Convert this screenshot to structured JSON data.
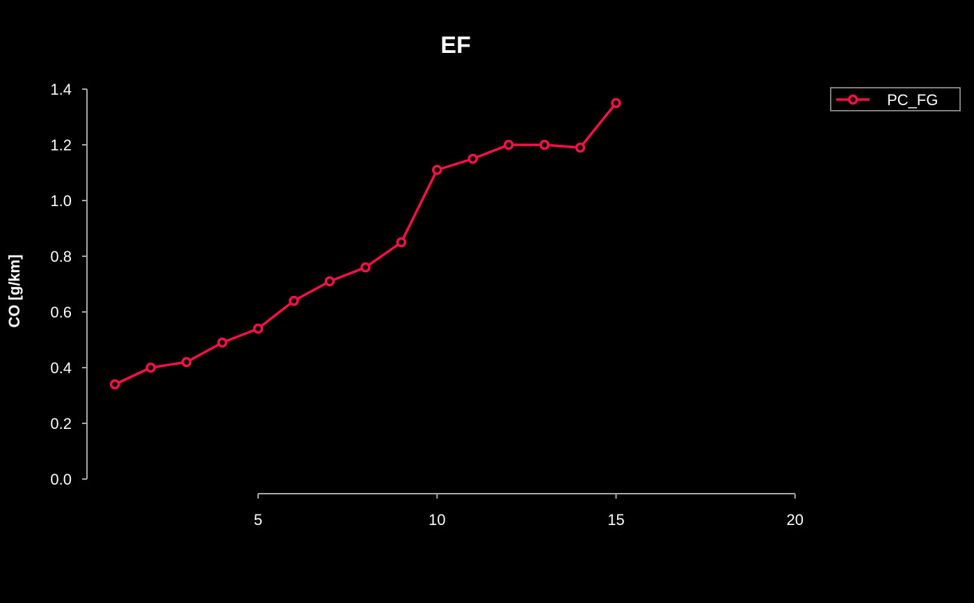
{
  "chart_data": {
    "type": "line",
    "title": "EF",
    "xlabel": "",
    "ylabel": "CO [g/km]",
    "xlim": [
      0,
      20
    ],
    "ylim": [
      0,
      1.4
    ],
    "x_ticks": [
      5,
      10,
      15,
      20
    ],
    "y_ticks": [
      "0.0",
      "0.2",
      "0.4",
      "0.6",
      "0.8",
      "1.0",
      "1.2",
      "1.4"
    ],
    "grid": false,
    "legend_position": "top-right",
    "series": [
      {
        "name": "PC_FG",
        "color": "#ff0f48",
        "marker": "circle-open",
        "x": [
          1,
          2,
          3,
          4,
          5,
          6,
          7,
          8,
          9,
          10,
          11,
          12,
          13,
          14,
          15
        ],
        "values": [
          0.34,
          0.4,
          0.42,
          0.49,
          0.54,
          0.64,
          0.71,
          0.76,
          0.85,
          1.11,
          1.15,
          1.2,
          1.2,
          1.19,
          1.35
        ]
      }
    ]
  },
  "colors": {
    "background": "#000000",
    "axis": "#aaaaaa",
    "text": "#ffffff"
  }
}
